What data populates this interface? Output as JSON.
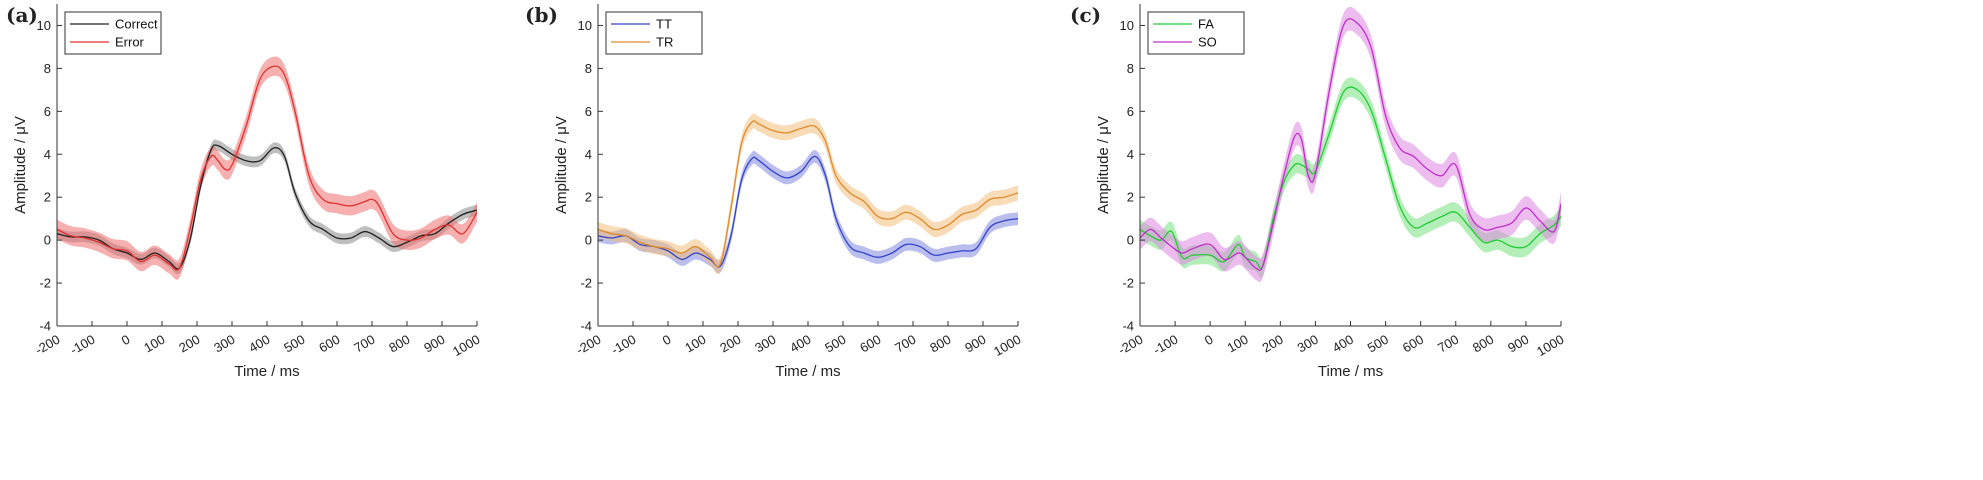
{
  "chart_data": [
    {
      "type": "line",
      "panel_label": "(a)",
      "xlabel": "Time / ms",
      "ylabel": "Amplitude / μV",
      "xlim": [
        -200,
        1000
      ],
      "ylim": [
        -4,
        11
      ],
      "x_ticks": [
        "-200",
        "-100",
        "0",
        "100",
        "200",
        "300",
        "400",
        "500",
        "600",
        "700",
        "800",
        "900",
        "1000"
      ],
      "y_ticks": [
        "-4",
        "-2",
        "0",
        "2",
        "4",
        "6",
        "8",
        "10"
      ],
      "legend_position": "top-left",
      "grid": false,
      "series": [
        {
          "name": "Correct",
          "color": "#222222",
          "band_color": "#8a8a8a",
          "x": [
            -200,
            -160,
            -120,
            -80,
            -40,
            0,
            40,
            80,
            120,
            150,
            180,
            210,
            240,
            260,
            300,
            340,
            380,
            420,
            450,
            480,
            520,
            560,
            600,
            640,
            680,
            720,
            760,
            800,
            840,
            880,
            920,
            960,
            1000
          ],
          "y": [
            0.3,
            0.15,
            0.15,
            0.0,
            -0.4,
            -0.6,
            -0.9,
            -0.6,
            -1.0,
            -1.3,
            0.0,
            2.5,
            4.2,
            4.4,
            4.0,
            3.7,
            3.7,
            4.3,
            3.9,
            2.2,
            0.9,
            0.5,
            0.1,
            0.1,
            0.4,
            0.1,
            -0.3,
            -0.1,
            0.2,
            0.3,
            0.8,
            1.2,
            1.4
          ],
          "band": 0.25
        },
        {
          "name": "Error",
          "color": "#e03030",
          "band_color": "#f07070",
          "x": [
            -200,
            -160,
            -120,
            -80,
            -40,
            0,
            40,
            80,
            120,
            150,
            180,
            210,
            240,
            260,
            280,
            300,
            340,
            380,
            420,
            450,
            480,
            520,
            560,
            600,
            640,
            680,
            700,
            720,
            760,
            800,
            840,
            880,
            920,
            960,
            1000
          ],
          "y": [
            0.5,
            0.2,
            0.1,
            -0.1,
            -0.4,
            -0.5,
            -1.0,
            -0.7,
            -1.1,
            -1.3,
            0.5,
            2.8,
            3.9,
            3.7,
            3.3,
            3.5,
            5.3,
            7.5,
            8.1,
            7.7,
            6.0,
            3.0,
            1.9,
            1.7,
            1.6,
            1.8,
            1.9,
            1.6,
            0.3,
            0.0,
            0.1,
            0.5,
            0.7,
            0.3,
            1.3
          ],
          "band": 0.45
        }
      ]
    },
    {
      "type": "line",
      "panel_label": "(b)",
      "xlabel": "Time / ms",
      "ylabel": "Amplitude / μV",
      "xlim": [
        -200,
        1000
      ],
      "ylim": [
        -4,
        11
      ],
      "x_ticks": [
        "-200",
        "-100",
        "0",
        "100",
        "200",
        "300",
        "400",
        "500",
        "600",
        "700",
        "800",
        "900",
        "1000"
      ],
      "y_ticks": [
        "-4",
        "-2",
        "0",
        "2",
        "4",
        "6",
        "8",
        "10"
      ],
      "legend_position": "top-left",
      "grid": false,
      "series": [
        {
          "name": "TT",
          "color": "#3344cc",
          "band_color": "#7f88e0",
          "x": [
            -200,
            -160,
            -120,
            -80,
            -40,
            0,
            40,
            80,
            120,
            150,
            180,
            210,
            240,
            260,
            300,
            340,
            380,
            420,
            450,
            480,
            520,
            560,
            600,
            640,
            680,
            720,
            760,
            800,
            840,
            880,
            920,
            960,
            1000
          ],
          "y": [
            0.2,
            0.1,
            0.2,
            -0.2,
            -0.3,
            -0.5,
            -0.9,
            -0.6,
            -0.9,
            -1.2,
            0.2,
            2.8,
            3.8,
            3.7,
            3.2,
            2.9,
            3.2,
            3.9,
            3.0,
            1.0,
            -0.3,
            -0.6,
            -0.8,
            -0.6,
            -0.2,
            -0.3,
            -0.7,
            -0.6,
            -0.5,
            -0.4,
            0.6,
            0.9,
            1.0
          ],
          "band": 0.3
        },
        {
          "name": "TR",
          "color": "#e08a2a",
          "band_color": "#f2bd7c",
          "x": [
            -200,
            -160,
            -120,
            -80,
            -40,
            0,
            40,
            80,
            120,
            150,
            180,
            210,
            240,
            260,
            300,
            340,
            380,
            420,
            450,
            480,
            520,
            560,
            600,
            640,
            680,
            720,
            760,
            800,
            840,
            880,
            920,
            960,
            1000
          ],
          "y": [
            0.5,
            0.3,
            0.2,
            -0.1,
            -0.3,
            -0.4,
            -0.6,
            -0.3,
            -0.8,
            -1.1,
            1.5,
            4.5,
            5.5,
            5.4,
            5.1,
            5.0,
            5.2,
            5.3,
            4.6,
            3.0,
            2.2,
            1.8,
            1.1,
            1.0,
            1.3,
            1.0,
            0.5,
            0.7,
            1.2,
            1.4,
            1.9,
            2.0,
            2.2
          ],
          "band": 0.35
        }
      ]
    },
    {
      "type": "line",
      "panel_label": "(c)",
      "xlabel": "Time / ms",
      "ylabel": "Amplitude / μV",
      "xlim": [
        -200,
        1000
      ],
      "ylim": [
        -4,
        11
      ],
      "x_ticks": [
        "-200",
        "-100",
        "0",
        "100",
        "200",
        "300",
        "400",
        "500",
        "600",
        "700",
        "800",
        "900",
        "1000"
      ],
      "y_ticks": [
        "-4",
        "-2",
        "0",
        "2",
        "4",
        "6",
        "8",
        "10"
      ],
      "legend_position": "top-left",
      "grid": false,
      "series": [
        {
          "name": "FA",
          "color": "#22cc33",
          "band_color": "#77e27f",
          "x": [
            -200,
            -170,
            -140,
            -110,
            -80,
            -50,
            0,
            40,
            80,
            100,
            130,
            150,
            180,
            210,
            240,
            260,
            280,
            300,
            340,
            380,
            420,
            460,
            500,
            540,
            580,
            620,
            660,
            700,
            740,
            780,
            820,
            860,
            900,
            940,
            980,
            1000
          ],
          "y": [
            0.5,
            0.2,
            0.0,
            0.4,
            -0.8,
            -0.7,
            -0.7,
            -1.0,
            -0.2,
            -0.8,
            -1.0,
            -1.2,
            1.0,
            2.7,
            3.5,
            3.5,
            3.3,
            3.2,
            5.0,
            6.9,
            7.0,
            6.0,
            3.8,
            1.6,
            0.6,
            0.8,
            1.1,
            1.3,
            0.6,
            -0.1,
            0.0,
            -0.3,
            -0.3,
            0.3,
            0.7,
            1.1
          ],
          "band": 0.45
        },
        {
          "name": "SO",
          "color": "#c030c8",
          "band_color": "#dc86e0",
          "x": [
            -200,
            -170,
            -140,
            -110,
            -80,
            -50,
            0,
            40,
            80,
            100,
            130,
            150,
            180,
            210,
            240,
            260,
            280,
            300,
            340,
            380,
            420,
            460,
            500,
            540,
            580,
            620,
            660,
            700,
            740,
            780,
            820,
            860,
            900,
            940,
            980,
            1000
          ],
          "y": [
            0.1,
            0.5,
            0.1,
            -0.3,
            -0.6,
            -0.4,
            -0.2,
            -0.9,
            -0.6,
            -0.8,
            -1.3,
            -1.2,
            0.8,
            3.0,
            4.8,
            4.7,
            3.0,
            3.1,
            7.0,
            10.0,
            10.1,
            8.9,
            5.8,
            4.3,
            3.9,
            3.3,
            3.0,
            3.5,
            1.2,
            0.5,
            0.6,
            0.8,
            1.5,
            0.9,
            0.4,
            1.7
          ],
          "band": 0.55
        }
      ]
    }
  ]
}
